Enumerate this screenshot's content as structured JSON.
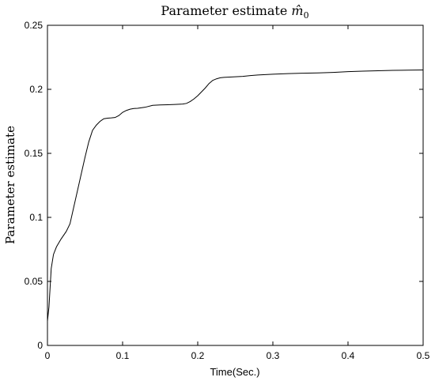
{
  "chart_data": {
    "type": "line",
    "title": {
      "prefix": "Parameter estimate ",
      "symbol": "m̂",
      "subscript": "0"
    },
    "xlabel": "Time(Sec.)",
    "ylabel": "Parameter estimate",
    "xlim": [
      0,
      0.5
    ],
    "ylim": [
      0,
      0.25
    ],
    "xticks": [
      0,
      0.1,
      0.2,
      0.3,
      0.4,
      0.5
    ],
    "xtick_labels": [
      "0",
      "0.1",
      "0.2",
      "0.3",
      "0.4",
      "0.5"
    ],
    "yticks": [
      0,
      0.05,
      0.1,
      0.15,
      0.2,
      0.25
    ],
    "ytick_labels": [
      "0",
      "0.05",
      "0.1",
      "0.15",
      "0.2",
      "0.25"
    ],
    "grid": false,
    "line_color": "#000000",
    "series": [
      {
        "x": [
          0.0,
          0.002,
          0.005,
          0.008,
          0.012,
          0.018,
          0.025,
          0.03,
          0.035,
          0.04,
          0.045,
          0.05,
          0.055,
          0.06,
          0.065,
          0.07,
          0.075,
          0.08,
          0.085,
          0.09,
          0.095,
          0.1,
          0.105,
          0.11,
          0.115,
          0.12,
          0.13,
          0.14,
          0.15,
          0.16,
          0.17,
          0.18,
          0.185,
          0.19,
          0.195,
          0.2,
          0.205,
          0.21,
          0.215,
          0.22,
          0.225,
          0.23,
          0.235,
          0.24,
          0.25,
          0.26,
          0.27,
          0.28,
          0.3,
          0.32,
          0.34,
          0.36,
          0.38,
          0.4,
          0.42,
          0.44,
          0.46,
          0.48,
          0.5
        ],
        "y": [
          0.019,
          0.03,
          0.06,
          0.071,
          0.077,
          0.083,
          0.089,
          0.095,
          0.108,
          0.121,
          0.134,
          0.147,
          0.159,
          0.168,
          0.172,
          0.175,
          0.177,
          0.1775,
          0.1777,
          0.178,
          0.1795,
          0.182,
          0.1835,
          0.1845,
          0.185,
          0.1852,
          0.186,
          0.1875,
          0.1878,
          0.188,
          0.1882,
          0.1885,
          0.189,
          0.1905,
          0.1925,
          0.195,
          0.198,
          0.201,
          0.2045,
          0.207,
          0.2082,
          0.209,
          0.2093,
          0.2095,
          0.2098,
          0.2101,
          0.2107,
          0.2112,
          0.2118,
          0.2123,
          0.2126,
          0.2128,
          0.2132,
          0.2138,
          0.2142,
          0.2145,
          0.2148,
          0.215,
          0.2151
        ]
      }
    ]
  }
}
